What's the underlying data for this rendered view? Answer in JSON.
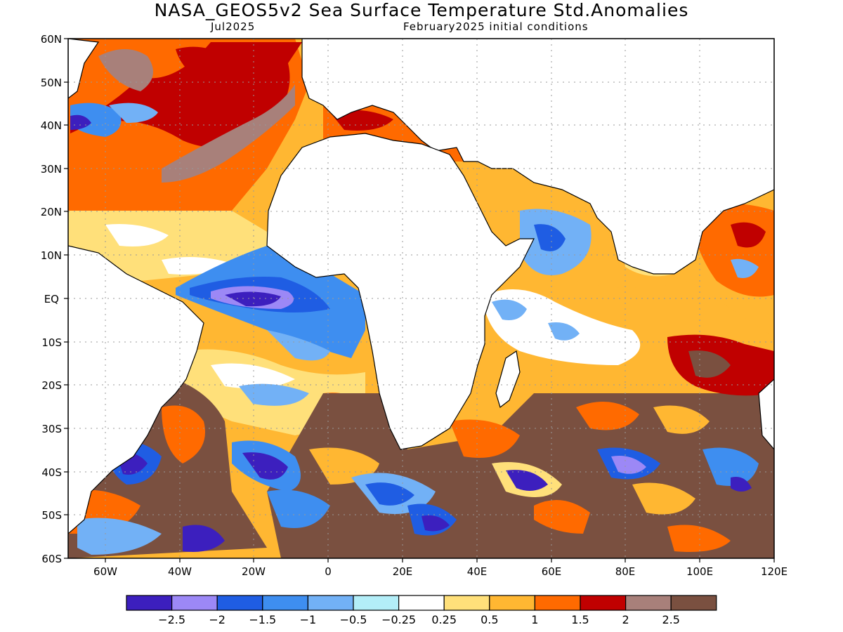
{
  "title": "NASA_GEOS5v2 Sea Surface Temperature Std.Anomalies",
  "valid_month": "Jul2025",
  "init_conditions": "February2025 initial conditions",
  "map": {
    "lon_range": [
      -70,
      120
    ],
    "lat_range": [
      -60,
      60
    ],
    "lat_labels": [
      "60N",
      "50N",
      "40N",
      "30N",
      "20N",
      "10N",
      "EQ",
      "10S",
      "20S",
      "30S",
      "40S",
      "50S",
      "60S"
    ],
    "lon_labels": [
      "60W",
      "40W",
      "20W",
      "0",
      "20E",
      "40E",
      "60E",
      "80E",
      "100E",
      "120E"
    ],
    "grid": "dotted"
  },
  "colorbar": {
    "colors": [
      "#3c1fbe",
      "#9c88f6",
      "#1f5de3",
      "#3e8ef0",
      "#72b1f6",
      "#b3eef8",
      "#ffffff",
      "#ffe07a",
      "#ffb732",
      "#ff6a00",
      "#c00000",
      "#a8807a",
      "#7a5040"
    ],
    "labels": [
      "-2.5",
      "-2",
      "-1.5",
      "-1",
      "-0.5",
      "-0.25",
      "0.25",
      "0.5",
      "1",
      "1.5",
      "2",
      "2.5"
    ]
  }
}
